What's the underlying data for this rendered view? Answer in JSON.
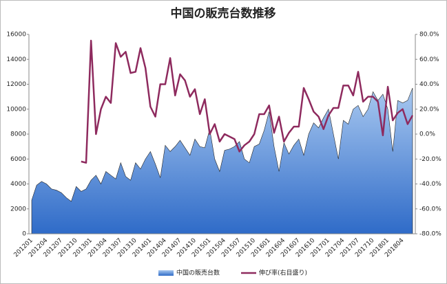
{
  "chart_data": {
    "type": "area-line",
    "title": "中国の販売台数推移",
    "categories": [
      "201201",
      null,
      null,
      "201204",
      null,
      null,
      "201207",
      null,
      null,
      "201210",
      null,
      null,
      "201301",
      null,
      null,
      "201304",
      null,
      null,
      "201307",
      null,
      null,
      "201310",
      null,
      null,
      "201401",
      null,
      null,
      "201404",
      null,
      null,
      "201407",
      null,
      null,
      "201410",
      null,
      null,
      "201501",
      null,
      null,
      "201504",
      null,
      null,
      "201507",
      null,
      null,
      "201510",
      null,
      null,
      "201601",
      null,
      null,
      "201604",
      null,
      null,
      "201607",
      null,
      null,
      "201610",
      null,
      null,
      "201701",
      null,
      null,
      "201704",
      null,
      null,
      "201707",
      null,
      null,
      "201710",
      null,
      null,
      "201801",
      null,
      null,
      "201804",
      null,
      null
    ],
    "series": [
      {
        "name": "中国の販売台数",
        "color": "#4a86d8",
        "values": [
          2700,
          3900,
          4200,
          4000,
          3600,
          3500,
          3300,
          2900,
          2600,
          3800,
          3400,
          3600,
          4300,
          4700,
          4000,
          5000,
          4700,
          4400,
          5700,
          4600,
          4300,
          5700,
          5200,
          6000,
          6600,
          5600,
          4500,
          7100,
          6600,
          7000,
          7500,
          6900,
          6300,
          7600,
          7000,
          6900,
          8400,
          6000,
          5000,
          6700,
          6800,
          7000,
          7400,
          6000,
          5700,
          7000,
          7200,
          8300,
          9800,
          7000,
          5000,
          7300,
          6400,
          7100,
          7600,
          6300,
          8000,
          8900,
          8500,
          9300,
          10000,
          8000,
          6000,
          9100,
          8800,
          10000,
          10300,
          9400,
          10000,
          11400,
          10700,
          11200,
          10000,
          6600,
          10700,
          10500,
          10700,
          11700
        ]
      },
      {
        "name": "伸び率(右目盛り)",
        "color": "#8e2a5e",
        "axis": "y2",
        "values": [
          null,
          null,
          null,
          null,
          null,
          null,
          null,
          null,
          null,
          null,
          -22,
          -23,
          75,
          0,
          20,
          30,
          25,
          73,
          62,
          66,
          49,
          50,
          69,
          53,
          22,
          14,
          40,
          40,
          61,
          31,
          48,
          43,
          30,
          36,
          16,
          28,
          0,
          8,
          -6,
          0,
          -2,
          -4,
          -14,
          -9,
          -6,
          0,
          16,
          16,
          23,
          1,
          14,
          -6,
          1,
          6,
          6,
          37,
          28,
          18,
          14,
          4,
          15,
          21,
          21,
          39,
          39,
          31,
          50,
          26,
          30,
          30,
          26,
          -1,
          38,
          11,
          17,
          20,
          8,
          15
        ]
      }
    ],
    "ylim": [
      0,
      16000
    ],
    "yticks": [
      0,
      2000,
      4000,
      6000,
      8000,
      10000,
      12000,
      14000,
      16000
    ],
    "y2lim": [
      -80,
      80
    ],
    "y2ticks": [
      {
        "value": -80,
        "label": "-80.0%"
      },
      {
        "value": -60,
        "label": "-60.0%"
      },
      {
        "value": -40,
        "label": "-40.0%"
      },
      {
        "value": -20,
        "label": "-20.0%"
      },
      {
        "value": 0,
        "label": "0.0%"
      },
      {
        "value": 20,
        "label": "20.0%"
      },
      {
        "value": 40,
        "label": "40.0%"
      },
      {
        "value": 60,
        "label": "60.0%"
      },
      {
        "value": 80,
        "label": "80.0%"
      }
    ],
    "legend": "bottom"
  }
}
